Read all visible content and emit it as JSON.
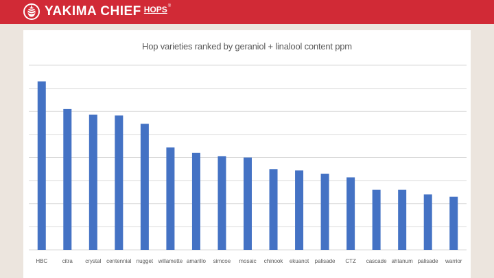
{
  "brand": {
    "name": "YAKIMA CHIEF",
    "suffix": "HOPS",
    "trademark": "®"
  },
  "colors": {
    "header": "#d12a36",
    "background": "#ece5de",
    "bar": "#4472c4",
    "grid": "#d9d9d9"
  },
  "chart_data": {
    "type": "bar",
    "title": "Hop varieties ranked by geraniol + linalool content ppm",
    "xlabel": "",
    "ylabel": "",
    "ylim": [
      0,
      8
    ],
    "grid": true,
    "legend": "none",
    "categories": [
      "HBC",
      "citra",
      "crystal",
      "centennial",
      "nugget",
      "willamette",
      "amarillo",
      "simcoe",
      "mosaic",
      "chinook",
      "ekuanot",
      "palisade",
      "CTZ",
      "cascade",
      "ahtanum",
      "palisade",
      "warrior"
    ],
    "values": [
      7.3,
      6.1,
      5.86,
      5.82,
      5.46,
      4.44,
      4.2,
      4.06,
      4.0,
      3.5,
      3.44,
      3.3,
      3.14,
      2.6,
      2.6,
      2.4,
      2.3
    ]
  }
}
